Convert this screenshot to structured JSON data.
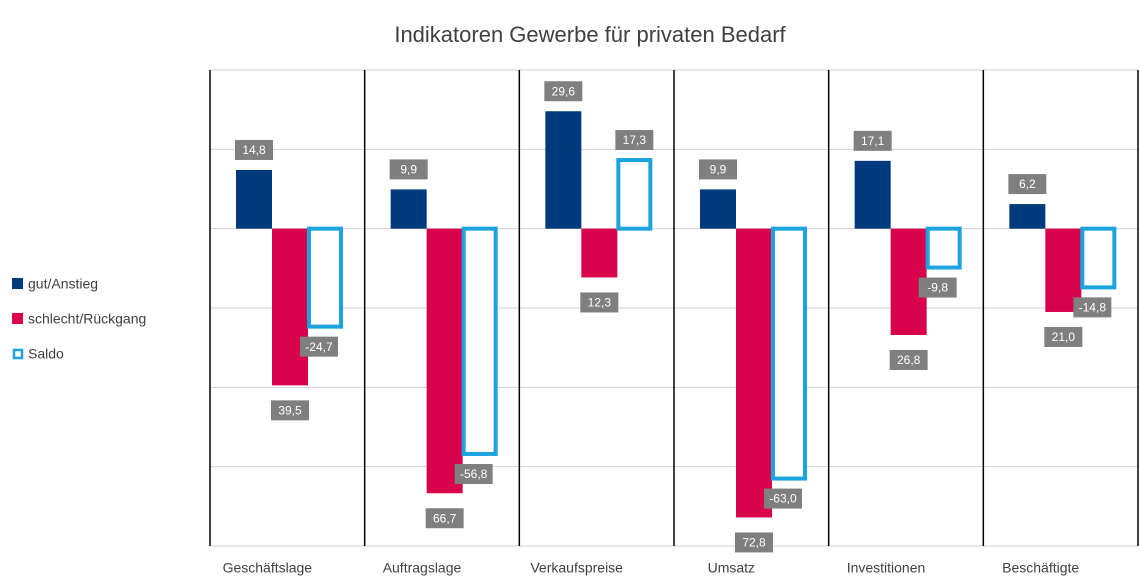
{
  "chart_data": {
    "type": "bar",
    "title": "Indikatoren Gewerbe für privaten Bedarf",
    "categories": [
      "Geschäftslage",
      "Auftragslage",
      "Verkaufspreise",
      "Umsatz",
      "Investitionen",
      "Beschäftigte"
    ],
    "series": [
      {
        "name": "gut/Anstieg",
        "color": "#003a7d",
        "style": "filled",
        "values": [
          14.8,
          9.9,
          29.6,
          9.9,
          17.1,
          6.2
        ],
        "value_labels": [
          "14,8",
          "9,9",
          "29,6",
          "9,9",
          "17,1",
          "6,2"
        ]
      },
      {
        "name": "schlecht/Rückgang",
        "color": "#d9004c",
        "style": "filled",
        "values": [
          -39.5,
          -66.7,
          -12.3,
          -72.8,
          -26.8,
          -21.0
        ],
        "value_labels": [
          "39,5",
          "66,7",
          "12,3",
          "72,8",
          "26,8",
          "21,0"
        ]
      },
      {
        "name": "Saldo",
        "color": "#1ba3e0",
        "style": "outline",
        "values": [
          -24.7,
          -56.8,
          17.3,
          -63.0,
          -9.8,
          -14.8
        ],
        "value_labels": [
          "-24,7",
          "-56,8",
          "17,3",
          "-63,0",
          "-9,8",
          "-14,8"
        ]
      }
    ],
    "ylim": [
      -80,
      40
    ],
    "yticks": [
      -80,
      -60,
      -40,
      -20,
      0,
      20,
      40
    ],
    "grid": true,
    "legend": "left"
  }
}
